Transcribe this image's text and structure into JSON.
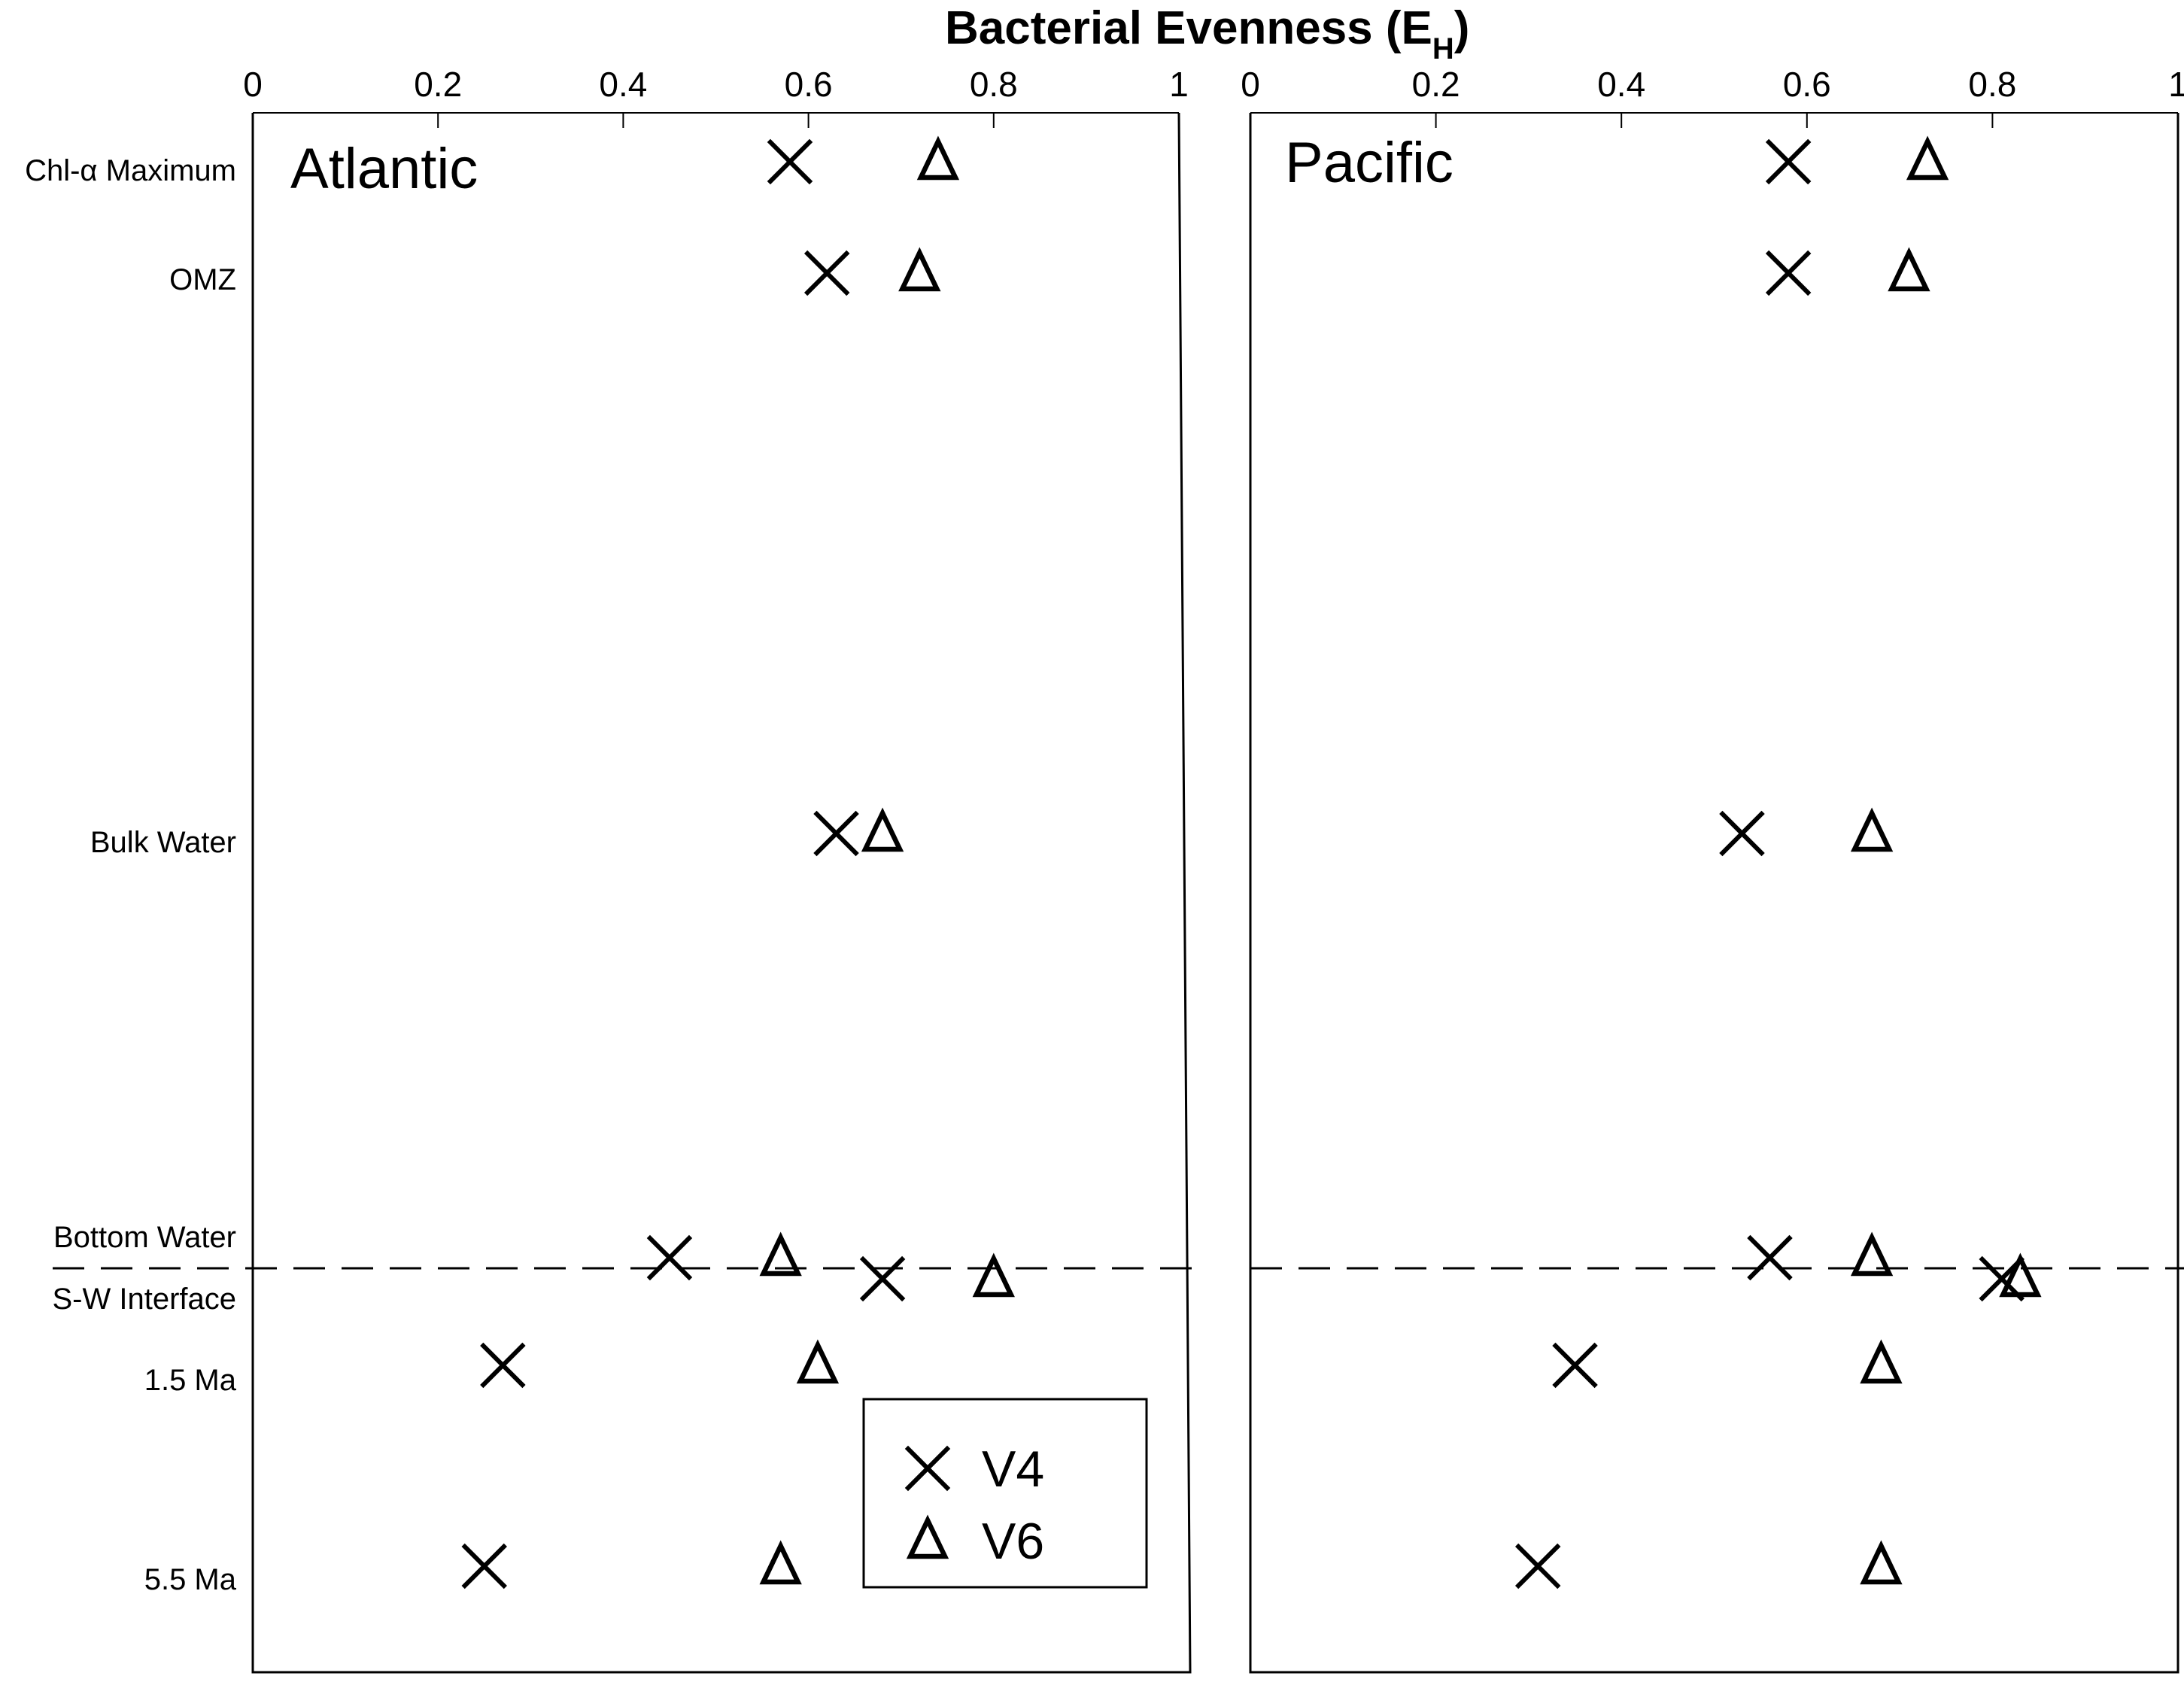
{
  "chart_data": {
    "type": "scatter",
    "title": "Bacterial Evenness (E",
    "title_subscript": "H",
    "title_close": ")",
    "x_ticks": [
      "0",
      "0.2",
      "0.4",
      "0.6",
      "0.8",
      "1"
    ],
    "xlim": [
      0,
      1
    ],
    "categories": [
      "Chl-α Maximum",
      "OMZ",
      "Bulk Water",
      "Bottom Water",
      "S-W Interface",
      "1.5 Ma",
      "5.5 Ma"
    ],
    "legend": {
      "placement": "bottom-right of Atlantic panel",
      "entries": [
        {
          "name": "V4",
          "marker": "cross"
        },
        {
          "name": "V6",
          "marker": "triangle"
        }
      ]
    },
    "divider": {
      "between": [
        "Bottom Water",
        "S-W Interface"
      ],
      "style": "dashed"
    },
    "panels": [
      {
        "name": "Atlantic",
        "series": [
          {
            "name": "V4",
            "marker": "cross",
            "values": {
              "Chl-α Maximum": 0.58,
              "OMZ": 0.62,
              "Bulk Water": 0.63,
              "Bottom Water": 0.45,
              "S-W Interface": 0.68,
              "1.5 Ma": 0.27,
              "5.5 Ma": 0.25
            }
          },
          {
            "name": "V6",
            "marker": "triangle",
            "values": {
              "Chl-α Maximum": 0.74,
              "OMZ": 0.72,
              "Bulk Water": 0.68,
              "Bottom Water": 0.57,
              "S-W Interface": 0.8,
              "1.5 Ma": 0.61,
              "5.5 Ma": 0.57
            }
          }
        ]
      },
      {
        "name": "Pacific",
        "series": [
          {
            "name": "V4",
            "marker": "cross",
            "values": {
              "Chl-α Maximum": 0.58,
              "OMZ": 0.58,
              "Bulk Water": 0.53,
              "Bottom Water": 0.56,
              "S-W Interface": 0.81,
              "1.5 Ma": 0.35,
              "5.5 Ma": 0.31
            }
          },
          {
            "name": "V6",
            "marker": "triangle",
            "values": {
              "Chl-α Maximum": 0.73,
              "OMZ": 0.71,
              "Bulk Water": 0.67,
              "Bottom Water": 0.67,
              "S-W Interface": 0.83,
              "1.5 Ma": 0.68,
              "5.5 Ma": 0.68
            }
          }
        ]
      }
    ]
  }
}
